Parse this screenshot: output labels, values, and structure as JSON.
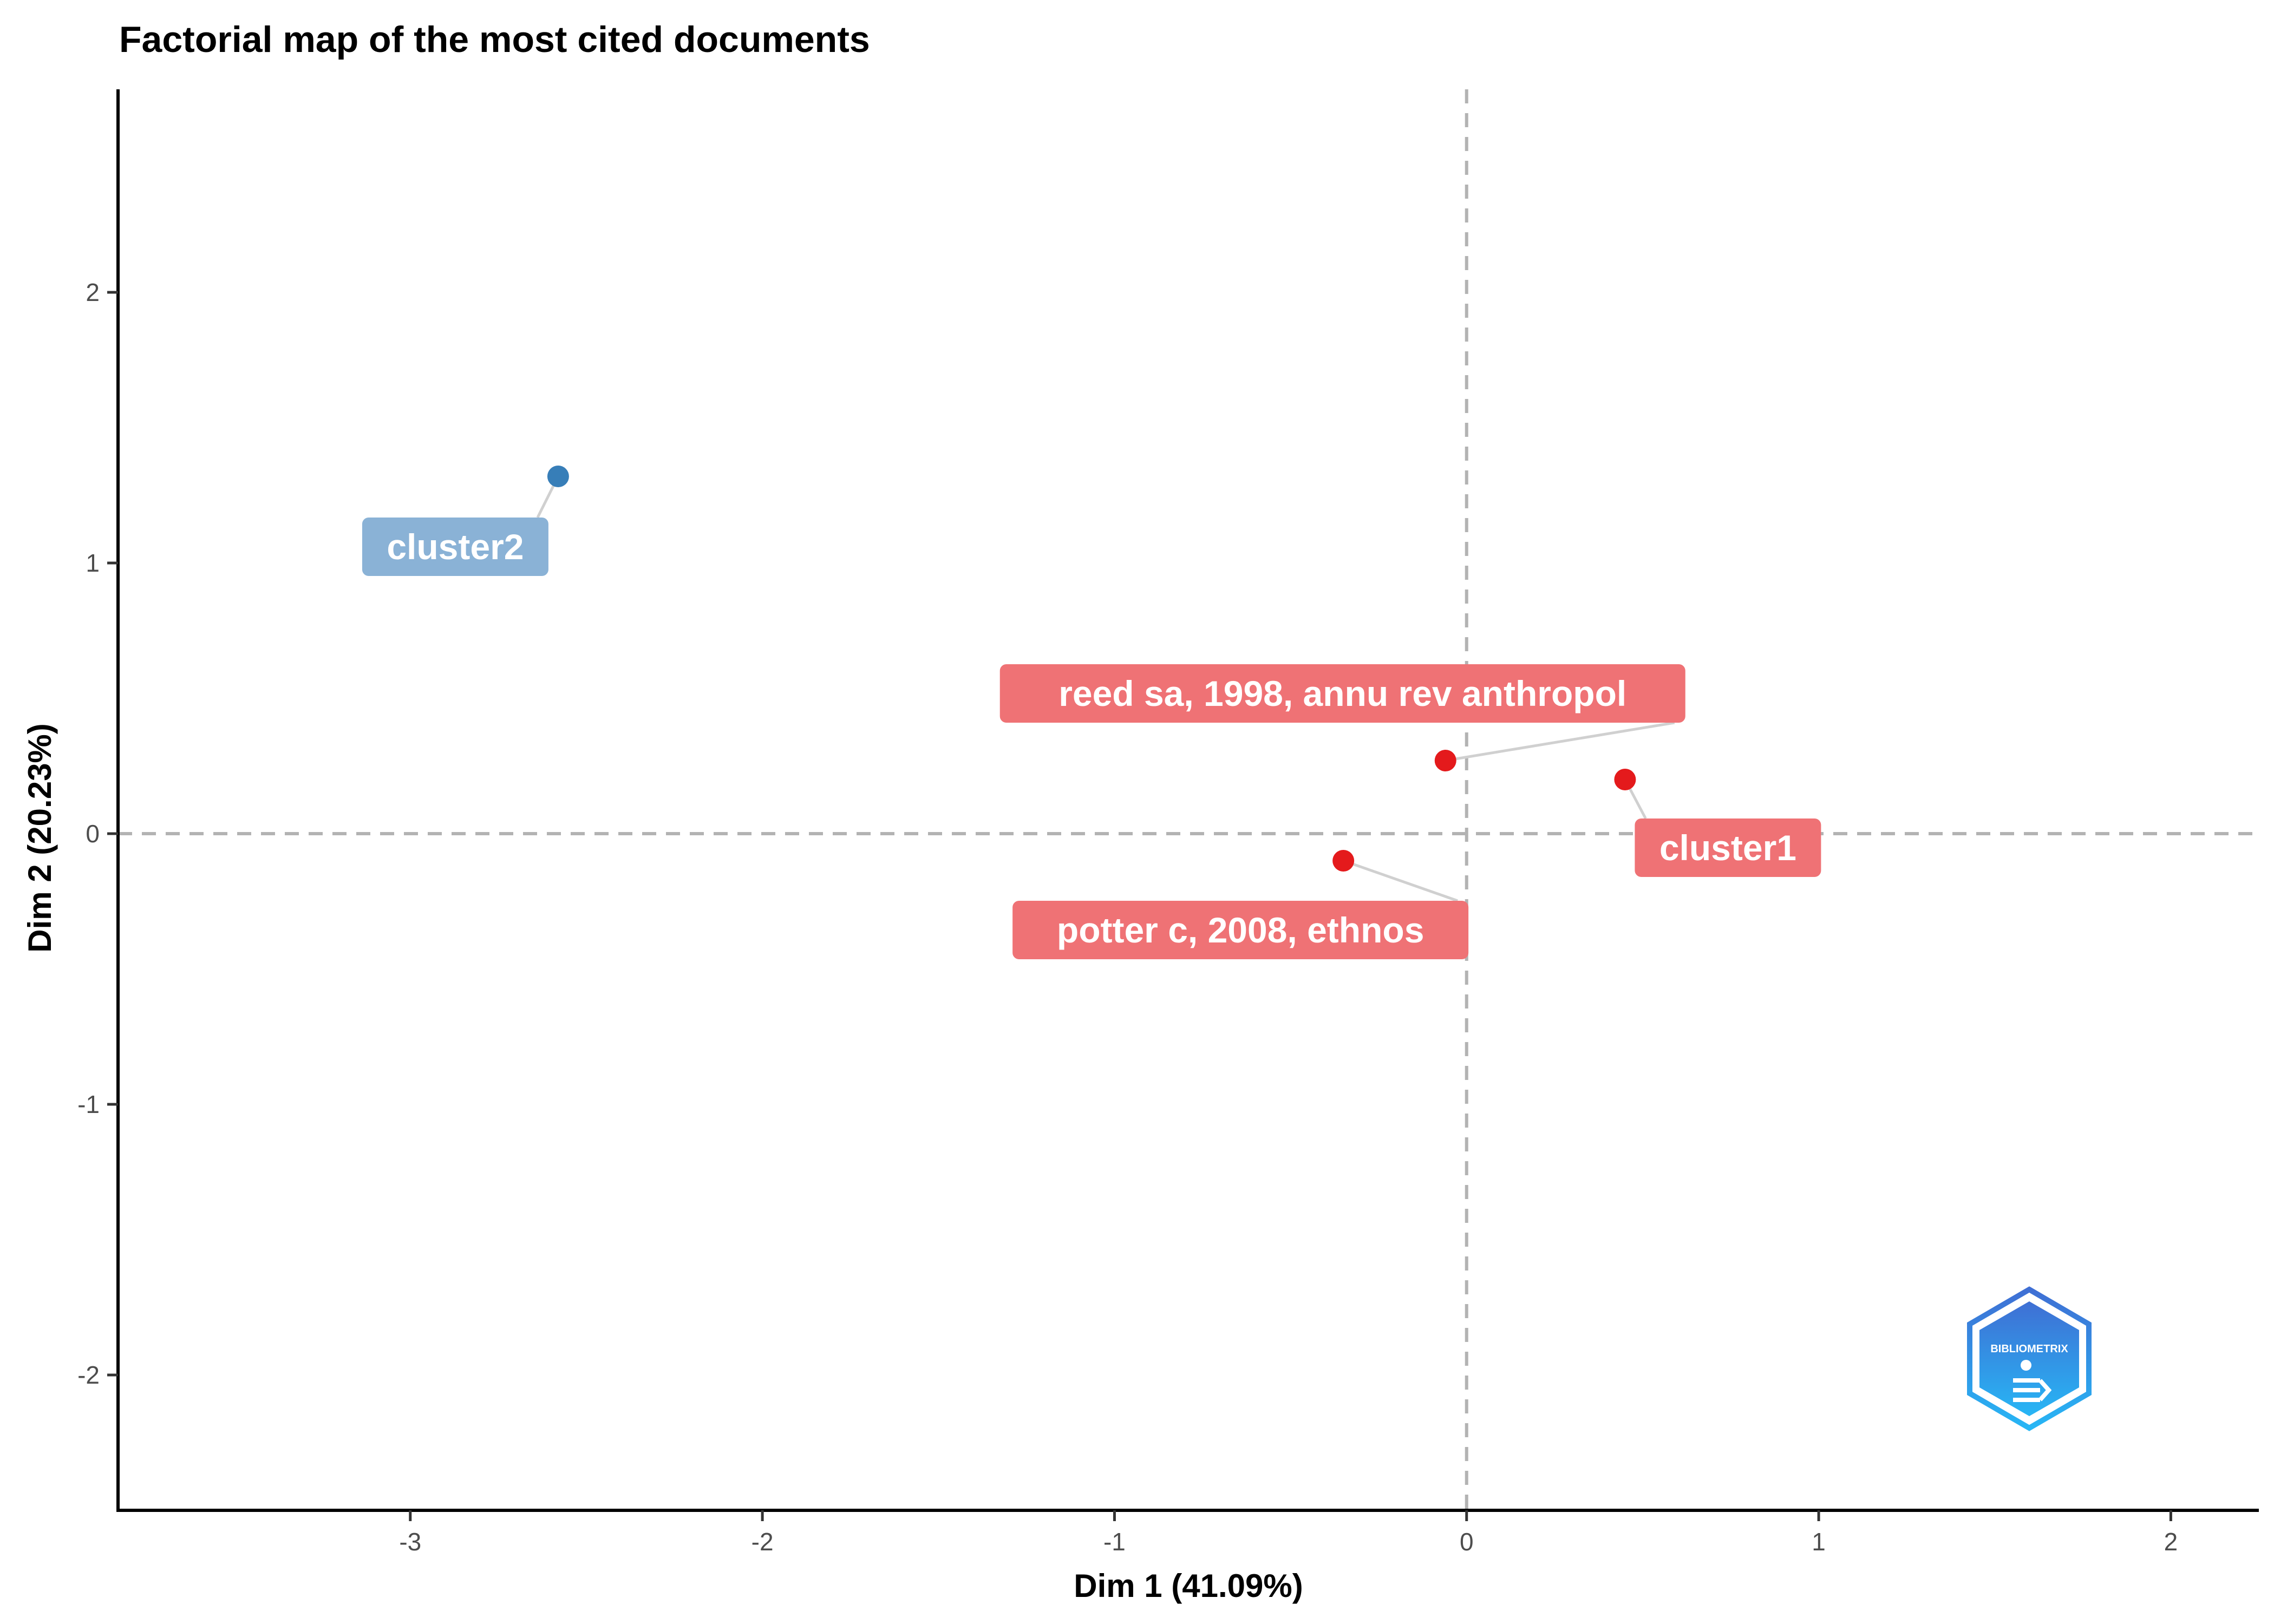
{
  "chart_data": {
    "type": "scatter",
    "title": "Factorial map of the most cited documents",
    "xlabel": "Dim 1 (41.09%)",
    "ylabel": "Dim 2 (20.23%)",
    "xlim": [
      -3.83,
      2.25
    ],
    "ylim": [
      -2.5,
      2.75
    ],
    "x_ticks": [
      -3,
      -2,
      -1,
      0,
      1,
      2
    ],
    "y_ticks": [
      -2,
      -1,
      0,
      1,
      2
    ],
    "reference_lines": {
      "x": 0,
      "y": 0,
      "style": "dashed"
    },
    "grid": false,
    "points": [
      {
        "label": "cluster2",
        "x": -2.58,
        "y": 1.32,
        "cluster": 2,
        "color": "#377eb8",
        "label_color": "#8ab2d6"
      },
      {
        "label": "reed sa, 1998, annu rev anthropol",
        "x": -0.06,
        "y": 0.27,
        "cluster": 1,
        "color": "#e41a1c",
        "label_color": "#ef7275"
      },
      {
        "label": "cluster1",
        "x": 0.45,
        "y": 0.2,
        "cluster": 1,
        "color": "#e41a1c",
        "label_color": "#ef7275"
      },
      {
        "label": "potter c, 2008, ethnos",
        "x": -0.35,
        "y": -0.1,
        "cluster": 1,
        "color": "#e41a1c",
        "label_color": "#ef7275"
      }
    ]
  },
  "logo": {
    "text": "BIBLIOMETRIX"
  }
}
